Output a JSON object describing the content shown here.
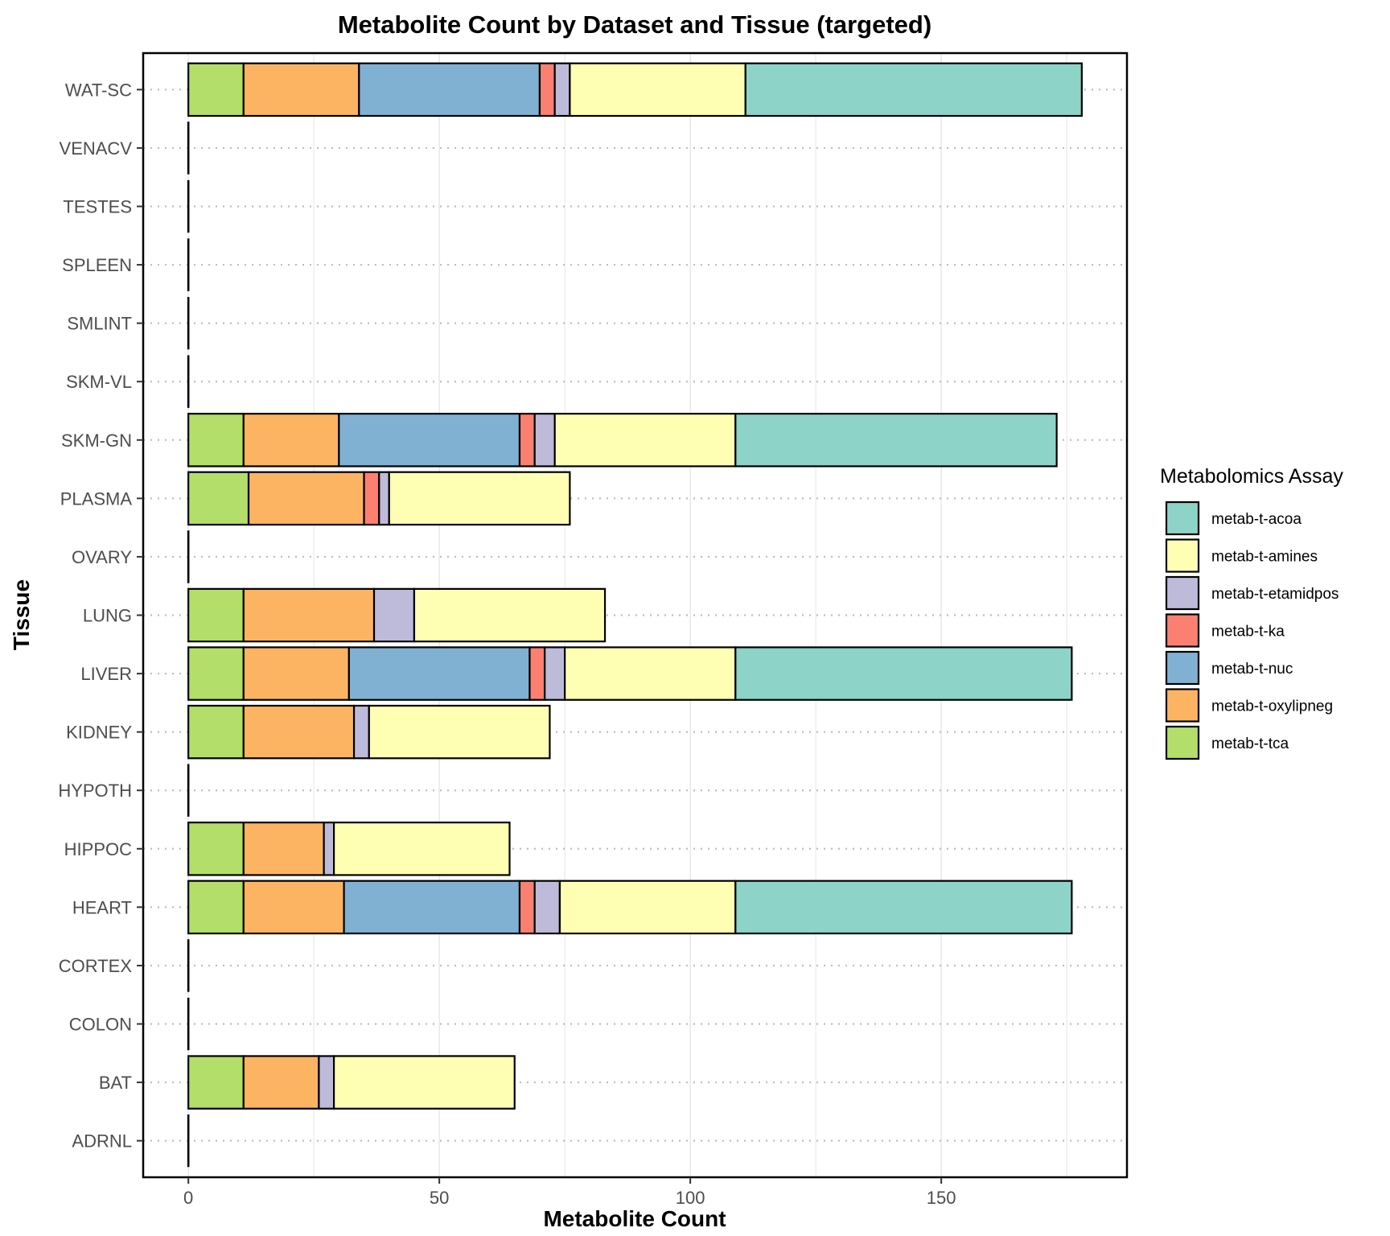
{
  "chart_data": {
    "type": "bar",
    "orientation": "horizontal",
    "stacked": true,
    "title": "Metabolite Count by Dataset and Tissue (targeted)",
    "xlabel": "Metabolite Count",
    "ylabel": "Tissue",
    "xlim": [
      -9,
      187
    ],
    "x_ticks": [
      0,
      50,
      100,
      150
    ],
    "x_tick_labels": [
      "0",
      "50",
      "100",
      "150"
    ],
    "x_minor_gridlines": [
      25,
      75,
      125,
      175
    ],
    "categories": [
      "ADRNL",
      "BAT",
      "COLON",
      "CORTEX",
      "HEART",
      "HIPPOC",
      "HYPOTH",
      "KIDNEY",
      "LIVER",
      "LUNG",
      "OVARY",
      "PLASMA",
      "SKM-GN",
      "SKM-VL",
      "SMLINT",
      "SPLEEN",
      "TESTES",
      "VENACV",
      "WAT-SC"
    ],
    "legend": {
      "title": "Metabolomics Assay",
      "position": "right",
      "entries": [
        "metab-t-acoa",
        "metab-t-amines",
        "metab-t-etamidpos",
        "metab-t-ka",
        "metab-t-nuc",
        "metab-t-oxylipneg",
        "metab-t-tca"
      ]
    },
    "stack_order": [
      "metab-t-tca",
      "metab-t-oxylipneg",
      "metab-t-nuc",
      "metab-t-ka",
      "metab-t-etamidpos",
      "metab-t-amines",
      "metab-t-acoa"
    ],
    "series": [
      {
        "name": "metab-t-acoa",
        "color": "#8DD3C7",
        "values": [
          0,
          0,
          0,
          0,
          67,
          0,
          0,
          0,
          67,
          0,
          0,
          0,
          64,
          0,
          0,
          0,
          0,
          0,
          67
        ]
      },
      {
        "name": "metab-t-amines",
        "color": "#FFFFB3",
        "values": [
          0,
          36,
          0,
          0,
          35,
          35,
          0,
          36,
          34,
          38,
          0,
          36,
          36,
          0,
          0,
          0,
          0,
          0,
          35
        ]
      },
      {
        "name": "metab-t-etamidpos",
        "color": "#BEBADA",
        "values": [
          0,
          3,
          0,
          0,
          5,
          2,
          0,
          3,
          4,
          8,
          0,
          2,
          4,
          0,
          0,
          0,
          0,
          0,
          3
        ]
      },
      {
        "name": "metab-t-ka",
        "color": "#FB8072",
        "values": [
          0,
          0,
          0,
          0,
          3,
          0,
          0,
          0,
          3,
          0,
          0,
          3,
          3,
          0,
          0,
          0,
          0,
          0,
          3
        ]
      },
      {
        "name": "metab-t-nuc",
        "color": "#80B1D3",
        "values": [
          0,
          0,
          0,
          0,
          35,
          0,
          0,
          0,
          36,
          0,
          0,
          0,
          36,
          0,
          0,
          0,
          0,
          0,
          36
        ]
      },
      {
        "name": "metab-t-oxylipneg",
        "color": "#FDB462",
        "values": [
          0,
          15,
          0,
          0,
          20,
          16,
          0,
          22,
          21,
          26,
          0,
          23,
          19,
          0,
          0,
          0,
          0,
          0,
          23
        ]
      },
      {
        "name": "metab-t-tca",
        "color": "#B3DE69",
        "values": [
          0,
          11,
          0,
          0,
          11,
          11,
          0,
          11,
          11,
          11,
          0,
          12,
          11,
          0,
          0,
          0,
          0,
          0,
          11
        ]
      }
    ],
    "grid": "dotted horizontal lines at categories, light vertical lines at minor x ticks",
    "background": "#ffffff"
  }
}
